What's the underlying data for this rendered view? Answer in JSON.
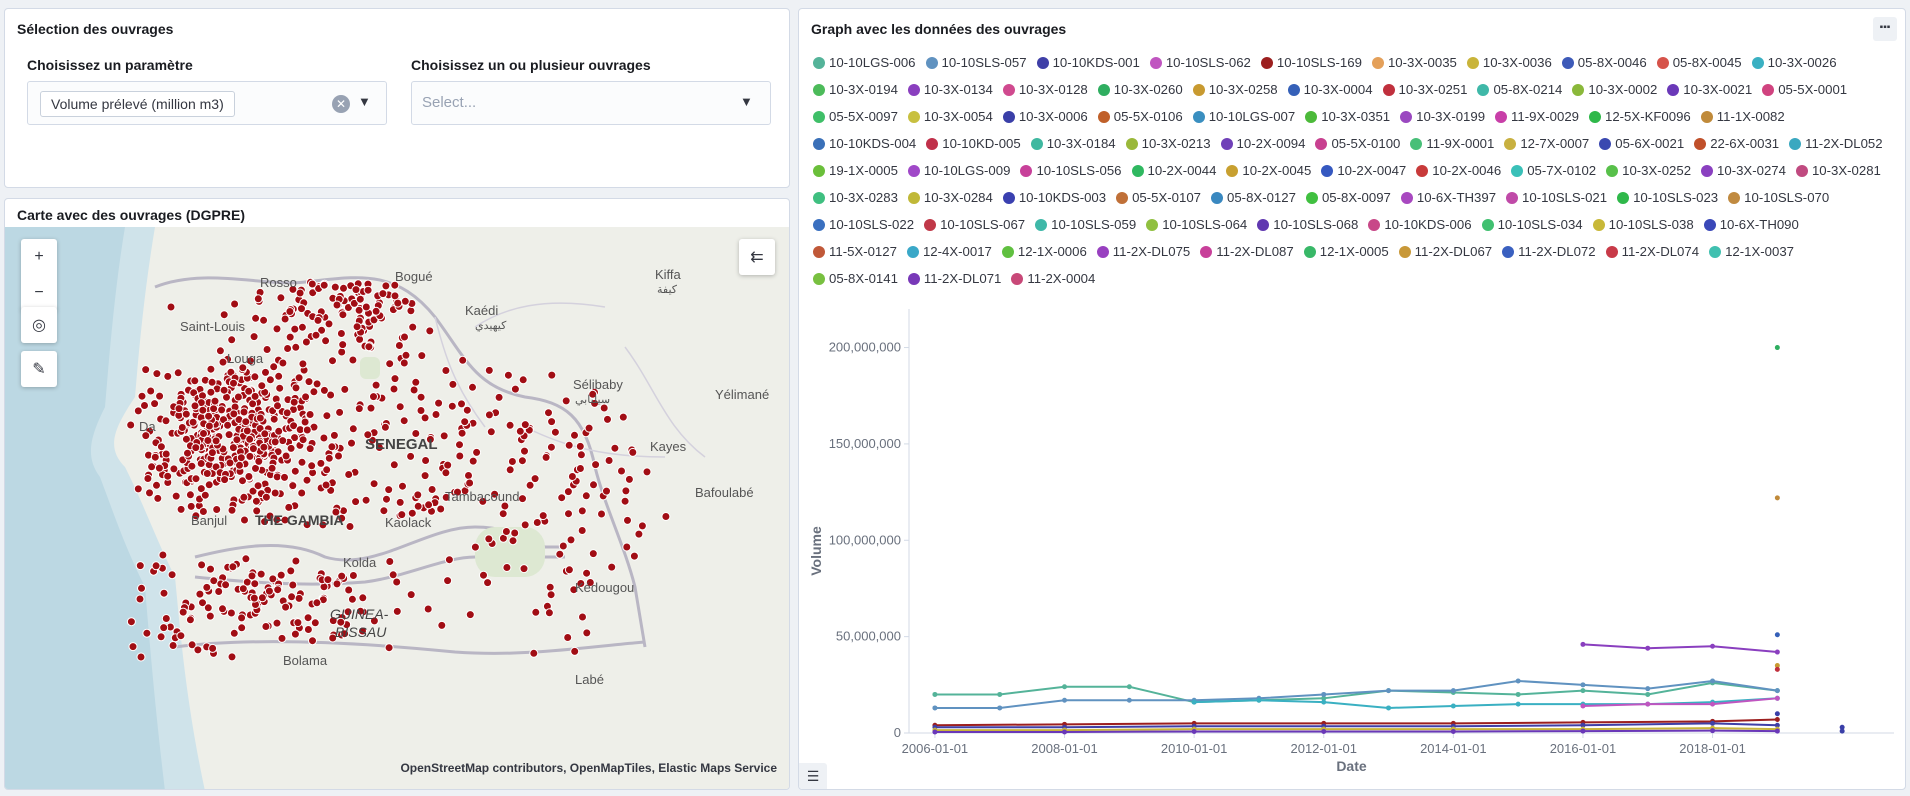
{
  "selection": {
    "title": "Sélection des ouvrages",
    "param_label": "Choisissez un paramètre",
    "param_value": "Volume prélevé (million m3)",
    "ouvrages_label": "Choisissez un ou plusieur ouvrages",
    "ouvrages_placeholder": "Select..."
  },
  "map": {
    "title": "Carte avec des ouvrages (DGPRE)",
    "attribution": "OpenStreetMap contributors, OpenMapTiles, Elastic Maps Service",
    "labels": {
      "saint_louis": "Saint-Louis",
      "rosso": "Rosso",
      "bogue": "Bogué",
      "kiffa": "Kiffa",
      "kiffa_ar": "كيفة",
      "kaedi": "Kaédi",
      "kaedi_ar": "كيهيدي",
      "louga": "Louga",
      "selibaby": "Sélibaby",
      "selibaby_ar": "سيلبابي",
      "yelimane": "Yélimané",
      "senegal": "SENEGAL",
      "kayes": "Kayes",
      "dakar": "Da",
      "bafoulabe": "Bafoulabé",
      "banjul": "Banjul",
      "gambia": "THE GAMBIA",
      "tambacounda": "Tambacound",
      "kaolack": "Kaolack",
      "kolda": "Kolda",
      "kedougou": "Kédougou",
      "guinea": "GUINEA-",
      "bissau": "BISSAU",
      "bolama": "Bolama",
      "labe": "Labé"
    },
    "controls": {
      "zoom_in": "+",
      "zoom_out": "−",
      "locate": "◎",
      "tools": "✎",
      "collapse": "⇇"
    }
  },
  "graph": {
    "title": "Graph avec les données des ouvrages",
    "legend": [
      {
        "label": "10-10LGS-006",
        "color": "#54b399"
      },
      {
        "label": "10-10SLS-057",
        "color": "#6092c0"
      },
      {
        "label": "10-10KDS-001",
        "color": "#3f3fa7"
      },
      {
        "label": "10-10SLS-062",
        "color": "#c055c0"
      },
      {
        "label": "10-10SLS-169",
        "color": "#9c1f1f"
      },
      {
        "label": "10-3X-0035",
        "color": "#e4a05a"
      },
      {
        "label": "10-3X-0036",
        "color": "#c9b43a"
      },
      {
        "label": "05-8X-0046",
        "color": "#3d5ab8"
      },
      {
        "label": "05-8X-0045",
        "color": "#d6534a"
      },
      {
        "label": "10-3X-0026",
        "color": "#3ab0c2"
      },
      {
        "label": "10-3X-0194",
        "color": "#4cbb5a"
      },
      {
        "label": "10-3X-0134",
        "color": "#8a3fbf"
      },
      {
        "label": "10-3X-0128",
        "color": "#d04a8f"
      },
      {
        "label": "10-3X-0260",
        "color": "#2fae60"
      },
      {
        "label": "10-3X-0258",
        "color": "#c89a30"
      },
      {
        "label": "10-3X-0004",
        "color": "#3560b8"
      },
      {
        "label": "10-3X-0251",
        "color": "#c0303d"
      },
      {
        "label": "05-8X-0214",
        "color": "#3fb8a8"
      },
      {
        "label": "10-3X-0002",
        "color": "#8ab83a"
      },
      {
        "label": "10-3X-0021",
        "color": "#6a38b8"
      },
      {
        "label": "05-5X-0001",
        "color": "#d0437f"
      },
      {
        "label": "05-5X-0097",
        "color": "#3fbf68"
      },
      {
        "label": "10-3X-0054",
        "color": "#c8c040"
      },
      {
        "label": "10-3X-0006",
        "color": "#3a3fa8"
      },
      {
        "label": "05-5X-0106",
        "color": "#c0602a"
      },
      {
        "label": "10-10LGS-007",
        "color": "#3a8fc0"
      },
      {
        "label": "10-3X-0351",
        "color": "#4cba3a"
      },
      {
        "label": "10-3X-0199",
        "color": "#9a48c0"
      },
      {
        "label": "11-9X-0029",
        "color": "#c83fa8"
      },
      {
        "label": "12-5X-KF0096",
        "color": "#2fb84a"
      },
      {
        "label": "11-1X-0082",
        "color": "#c08a3a"
      },
      {
        "label": "10-10KDS-004",
        "color": "#3a70b8"
      },
      {
        "label": "10-10KD-005",
        "color": "#c0304a"
      },
      {
        "label": "10-3X-0184",
        "color": "#3fb8a0"
      },
      {
        "label": "10-3X-0213",
        "color": "#9ab83a"
      },
      {
        "label": "10-2X-0094",
        "color": "#7040b8"
      },
      {
        "label": "05-5X-0100",
        "color": "#c84090"
      },
      {
        "label": "11-9X-0001",
        "color": "#48bf78"
      },
      {
        "label": "12-7X-0007",
        "color": "#c8b040"
      },
      {
        "label": "05-6X-0021",
        "color": "#3a48b0"
      },
      {
        "label": "22-6X-0031",
        "color": "#c0502a"
      },
      {
        "label": "11-2X-DL052",
        "color": "#3aa8c0"
      },
      {
        "label": "19-1X-0005",
        "color": "#6abf3a"
      },
      {
        "label": "10-10LGS-009",
        "color": "#a048c8"
      },
      {
        "label": "10-10SLS-056",
        "color": "#c8409a"
      },
      {
        "label": "10-2X-0044",
        "color": "#2fb860"
      },
      {
        "label": "10-2X-0045",
        "color": "#c8a030"
      },
      {
        "label": "10-2X-0047",
        "color": "#3558c0"
      },
      {
        "label": "10-2X-0046",
        "color": "#c83a3a"
      },
      {
        "label": "05-7X-0102",
        "color": "#3ac0b8"
      },
      {
        "label": "10-3X-0252",
        "color": "#58c04a"
      },
      {
        "label": "10-3X-0274",
        "color": "#8a40c0"
      },
      {
        "label": "10-3X-0281",
        "color": "#c04a80"
      },
      {
        "label": "10-3X-0283",
        "color": "#3fbf80"
      },
      {
        "label": "10-3X-0284",
        "color": "#c0b838"
      },
      {
        "label": "10-10KDS-003",
        "color": "#3a40b0"
      },
      {
        "label": "05-5X-0107",
        "color": "#c07038"
      },
      {
        "label": "05-8X-0127",
        "color": "#3a88c0"
      },
      {
        "label": "05-8X-0097",
        "color": "#40c040"
      },
      {
        "label": "10-6X-TH397",
        "color": "#a848c0"
      },
      {
        "label": "10-10SLS-021",
        "color": "#c04aa8"
      },
      {
        "label": "10-10SLS-023",
        "color": "#2fb84a"
      },
      {
        "label": "10-10SLS-070",
        "color": "#c08a40"
      },
      {
        "label": "10-10SLS-022",
        "color": "#3a70c0"
      },
      {
        "label": "10-10SLS-067",
        "color": "#c03848"
      },
      {
        "label": "10-10SLS-059",
        "color": "#3fb8a8"
      },
      {
        "label": "10-10SLS-064",
        "color": "#90c040"
      },
      {
        "label": "10-10SLS-068",
        "color": "#6038b0"
      },
      {
        "label": "10-10KDS-006",
        "color": "#c84888"
      },
      {
        "label": "10-10SLS-034",
        "color": "#40c070"
      },
      {
        "label": "10-10SLS-038",
        "color": "#c8b838"
      },
      {
        "label": "10-6X-TH090",
        "color": "#3a48b8"
      },
      {
        "label": "11-5X-0127",
        "color": "#c05838"
      },
      {
        "label": "12-4X-0017",
        "color": "#3aa8c8"
      },
      {
        "label": "12-1X-0006",
        "color": "#60c040"
      },
      {
        "label": "11-2X-DL075",
        "color": "#9840c0"
      },
      {
        "label": "11-2X-DL087",
        "color": "#c8409a"
      },
      {
        "label": "12-1X-0005",
        "color": "#38b868"
      },
      {
        "label": "11-2X-DL067",
        "color": "#c89838"
      },
      {
        "label": "11-2X-DL072",
        "color": "#3a60c0"
      },
      {
        "label": "11-2X-DL074",
        "color": "#c83a48"
      },
      {
        "label": "12-1X-0037",
        "color": "#40c0b0"
      },
      {
        "label": "05-8X-0141",
        "color": "#78c040"
      },
      {
        "label": "11-2X-DL071",
        "color": "#7838b8"
      },
      {
        "label": "11-2X-0004",
        "color": "#c84878"
      }
    ]
  },
  "chart_data": {
    "type": "line",
    "xlabel": "Date",
    "ylabel": "Volume",
    "x_ticks": [
      "2006-01-01",
      "2008-01-01",
      "2010-01-01",
      "2012-01-01",
      "2014-01-01",
      "2016-01-01",
      "2018-01-01"
    ],
    "y_ticks": [
      "0",
      "50,000,000",
      "100,000,000",
      "150,000,000",
      "200,000,000"
    ],
    "xlim": [
      2005.6,
      2020.8
    ],
    "ylim": [
      0,
      220000000
    ],
    "series": [
      {
        "color": "#54b399",
        "x": [
          2006.0,
          2007.0,
          2008.0,
          2009.0,
          2010.0,
          2011.0,
          2012.0,
          2013.0,
          2014.0,
          2015.0,
          2016.0,
          2017.0,
          2018.0,
          2019.0
        ],
        "y": [
          20000000,
          20000000,
          24000000,
          24000000,
          16000000,
          17000000,
          18000000,
          22000000,
          21000000,
          20000000,
          22000000,
          20000000,
          26000000,
          22000000
        ]
      },
      {
        "color": "#6092c0",
        "x": [
          2006.0,
          2007.0,
          2008.0,
          2009.0,
          2010.0,
          2011.0,
          2012.0,
          2013.0,
          2014.0,
          2015.0,
          2016.0,
          2017.0,
          2018.0,
          2019.0
        ],
        "y": [
          13000000,
          13000000,
          17000000,
          17000000,
          17000000,
          18000000,
          20000000,
          22000000,
          22000000,
          27000000,
          25000000,
          23000000,
          27000000,
          22000000
        ]
      },
      {
        "color": "#3ab0c2",
        "x": [
          2010.0,
          2011.0,
          2012.0,
          2013.0,
          2014.0,
          2015.0,
          2016.0,
          2017.0,
          2018.0,
          2019.0
        ],
        "y": [
          16000000,
          17000000,
          16000000,
          13000000,
          14000000,
          15000000,
          15000000,
          15000000,
          16000000,
          18000000
        ]
      },
      {
        "color": "#8a3fbf",
        "x": [
          2016.0,
          2017.0,
          2018.0,
          2019.0
        ],
        "y": [
          46000000,
          44000000,
          45000000,
          42000000
        ]
      },
      {
        "color": "#c055c0",
        "x": [
          2016.0,
          2017.0,
          2018.0,
          2019.0
        ],
        "y": [
          14000000,
          15000000,
          15000000,
          18000000
        ]
      },
      {
        "color": "#9c1f1f",
        "x": [
          2006.0,
          2008.0,
          2010.0,
          2012.0,
          2014.0,
          2016.0,
          2018.0,
          2019.0
        ],
        "y": [
          4000000,
          4500000,
          5000000,
          5000000,
          5000000,
          5500000,
          6000000,
          7000000
        ]
      },
      {
        "color": "#3f3fa7",
        "x": [
          2006.0,
          2008.0,
          2010.0,
          2012.0,
          2014.0,
          2016.0,
          2018.0,
          2019.0
        ],
        "y": [
          3000000,
          3000000,
          3500000,
          3500000,
          3500000,
          4000000,
          5000000,
          4000000
        ]
      },
      {
        "color": "#c9b43a",
        "x": [
          2006.0,
          2008.0,
          2010.0,
          2012.0,
          2014.0,
          2016.0,
          2018.0,
          2019.0
        ],
        "y": [
          1500000,
          1500000,
          2000000,
          2000000,
          2000000,
          2000000,
          2500000,
          2000000
        ]
      },
      {
        "color": "#6a38b8",
        "x": [
          2006.0,
          2008.0,
          2010.0,
          2012.0,
          2014.0,
          2016.0,
          2018.0,
          2019.0
        ],
        "y": [
          500000,
          500000,
          800000,
          800000,
          800000,
          1000000,
          1200000,
          1000000
        ]
      }
    ],
    "points": [
      {
        "color": "#2fae60",
        "x": 2019.0,
        "y": 200000000
      },
      {
        "color": "#c08a3a",
        "x": 2019.0,
        "y": 122000000
      },
      {
        "color": "#3560b8",
        "x": 2019.0,
        "y": 51000000
      },
      {
        "color": "#c89a30",
        "x": 2019.0,
        "y": 35000000
      },
      {
        "color": "#c0303d",
        "x": 2019.0,
        "y": 33000000
      },
      {
        "color": "#3a3fa8",
        "x": 2019.0,
        "y": 10000000
      },
      {
        "color": "#3a3fa8",
        "x": 2020.0,
        "y": 3000000
      },
      {
        "color": "#3a3fa8",
        "x": 2020.0,
        "y": 1000000
      }
    ]
  }
}
